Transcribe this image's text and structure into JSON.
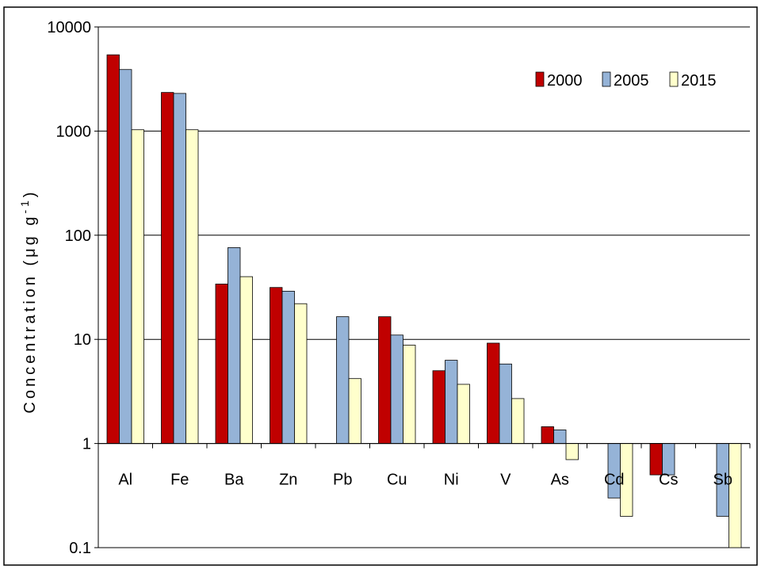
{
  "chart_data": {
    "type": "bar",
    "title": "",
    "xlabel": "",
    "ylabel": {
      "main": "Concentration (μg g",
      "sup": "-1",
      "end": ")"
    },
    "y_scale": "log",
    "ylim": [
      0.1,
      10000
    ],
    "bar_baseline": 1,
    "y_ticks": [
      {
        "value": 0.1,
        "label": "0.1"
      },
      {
        "value": 1,
        "label": "1"
      },
      {
        "value": 10,
        "label": "10"
      },
      {
        "value": 100,
        "label": "100"
      },
      {
        "value": 1000,
        "label": "1000"
      },
      {
        "value": 10000,
        "label": "10000"
      }
    ],
    "grid": "horizontal major gridlines",
    "legend_position": "top-right",
    "categories": [
      "Al",
      "Fe",
      "Ba",
      "Zn",
      "Pb",
      "Cu",
      "Ni",
      "V",
      "As",
      "Cd",
      "Cs",
      "Sb"
    ],
    "series": [
      {
        "name": "2000",
        "color": "#C00000",
        "values": [
          5400,
          2350,
          34,
          31.5,
          null,
          16.5,
          5,
          9.2,
          1.45,
          null,
          0.5,
          null
        ]
      },
      {
        "name": "2005",
        "color": "#95B3D7",
        "values": [
          3900,
          2300,
          76,
          29,
          16.5,
          11,
          6.3,
          5.8,
          1.35,
          0.3,
          0.5,
          0.2
        ]
      },
      {
        "name": "2015",
        "color": "#FFFFCC",
        "values": [
          1030,
          1030,
          40,
          22,
          4.2,
          8.8,
          3.7,
          2.7,
          0.7,
          0.2,
          null,
          0.1
        ]
      }
    ]
  }
}
